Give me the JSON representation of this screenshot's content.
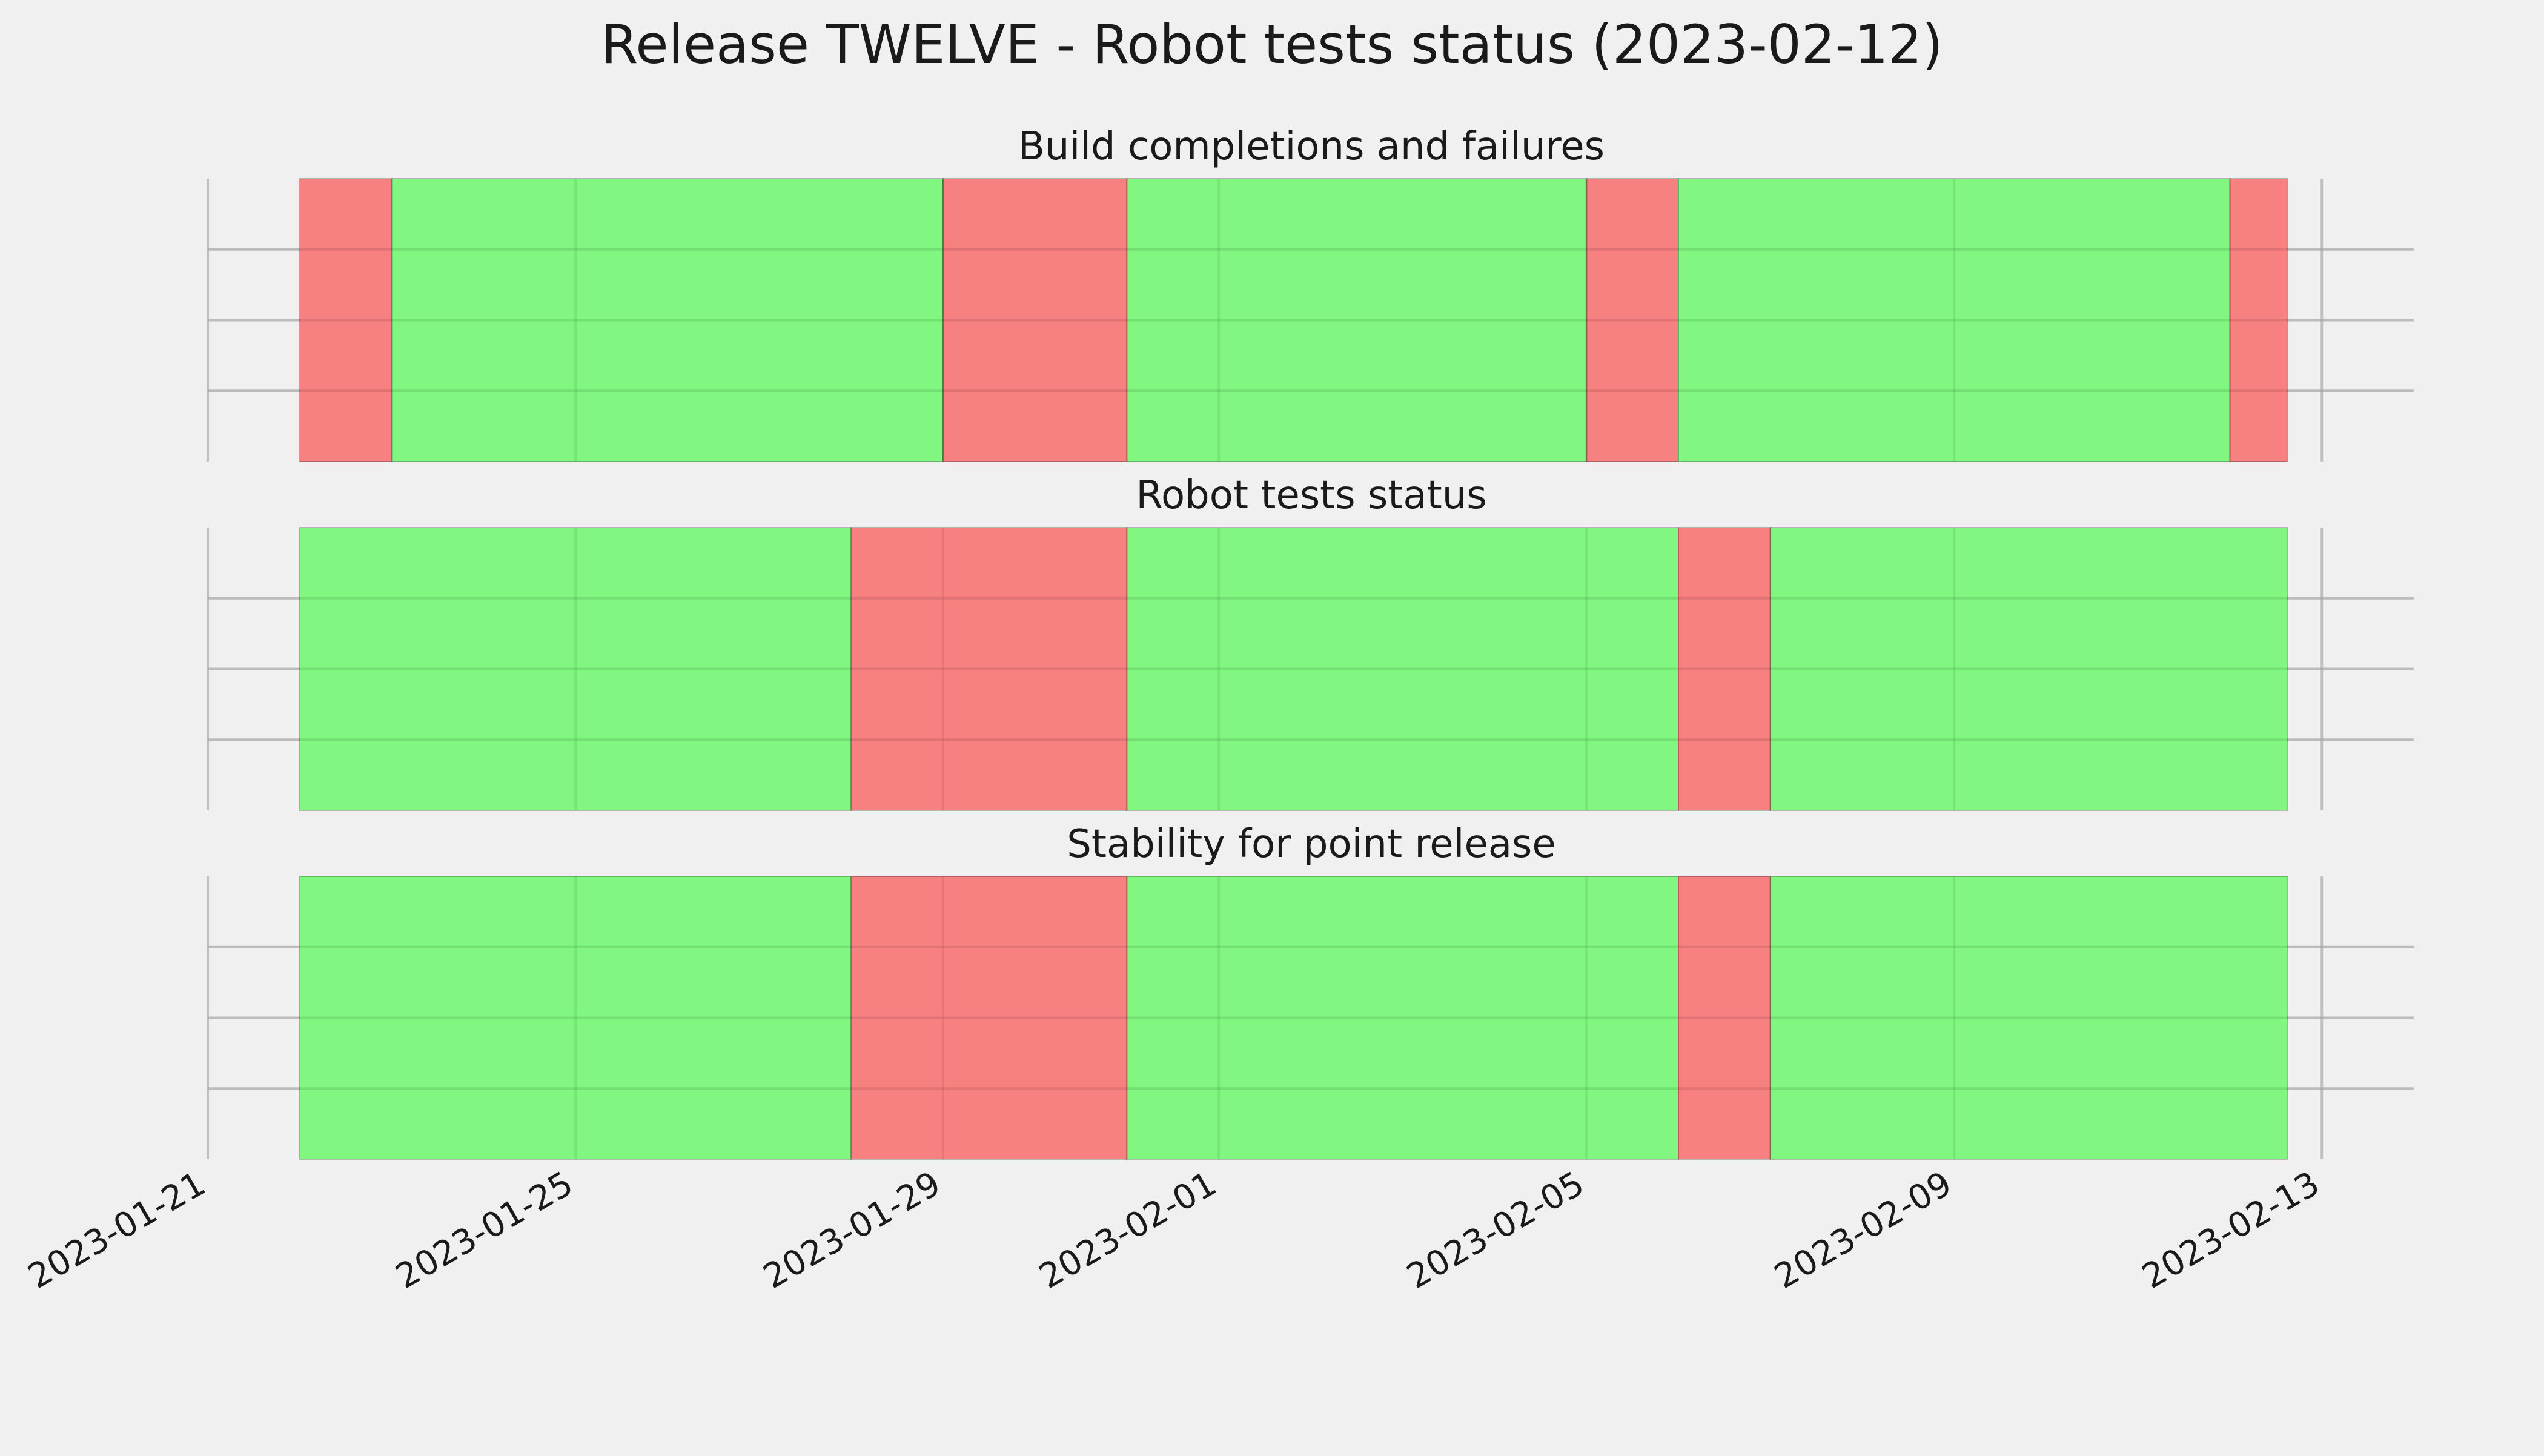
{
  "chart_data": {
    "type": "timeline",
    "title": "Release TWELVE - Robot tests status (2023-02-12)",
    "xlim": [
      "2023-01-21",
      "2023-02-14"
    ],
    "x_ticks": [
      "2023-01-21",
      "2023-01-25",
      "2023-01-29",
      "2023-02-01",
      "2023-02-05",
      "2023-02-09",
      "2023-02-13"
    ],
    "grid": true,
    "colors": {
      "pass": "#77f777",
      "fail": "#f77777",
      "background": "#f0f0f0",
      "grid": "#cccccc"
    },
    "panels": [
      {
        "title": "Build completions and failures",
        "segments": [
          {
            "start": "2023-01-22",
            "end": "2023-01-23",
            "status": "fail"
          },
          {
            "start": "2023-01-23",
            "end": "2023-01-29",
            "status": "pass"
          },
          {
            "start": "2023-01-29",
            "end": "2023-01-31",
            "status": "fail"
          },
          {
            "start": "2023-01-31",
            "end": "2023-02-05",
            "status": "pass"
          },
          {
            "start": "2023-02-05",
            "end": "2023-02-06",
            "status": "fail"
          },
          {
            "start": "2023-02-06",
            "end": "2023-02-12",
            "status": "pass"
          },
          {
            "start": "2023-02-12",
            "end": "2023-02-12T15:00",
            "status": "fail"
          }
        ]
      },
      {
        "title": "Robot tests status",
        "segments": [
          {
            "start": "2023-01-22",
            "end": "2023-01-28",
            "status": "pass"
          },
          {
            "start": "2023-01-28",
            "end": "2023-01-31",
            "status": "fail"
          },
          {
            "start": "2023-01-31",
            "end": "2023-02-06",
            "status": "pass"
          },
          {
            "start": "2023-02-06",
            "end": "2023-02-07",
            "status": "fail"
          },
          {
            "start": "2023-02-07",
            "end": "2023-02-12T15:00",
            "status": "pass"
          }
        ]
      },
      {
        "title": "Stability for point release",
        "segments": [
          {
            "start": "2023-01-22",
            "end": "2023-01-28",
            "status": "pass"
          },
          {
            "start": "2023-01-28",
            "end": "2023-01-31",
            "status": "fail"
          },
          {
            "start": "2023-01-31",
            "end": "2023-02-06",
            "status": "pass"
          },
          {
            "start": "2023-02-06",
            "end": "2023-02-07",
            "status": "fail"
          },
          {
            "start": "2023-02-07",
            "end": "2023-02-12T15:00",
            "status": "pass"
          }
        ]
      }
    ]
  }
}
